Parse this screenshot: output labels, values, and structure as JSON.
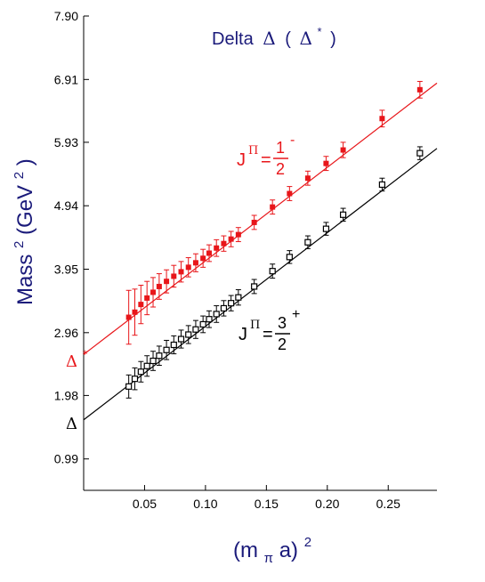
{
  "chart_data": {
    "type": "scatter",
    "title": "Delta",
    "title_symbol": "Δ",
    "title_paren_open": "(",
    "title_paren_symbol": "Δ",
    "title_paren_sup": "*",
    "title_paren_close": ")",
    "xlabel_main": "(m",
    "xlabel_sub": "π",
    "xlabel_end": "a)",
    "xlabel_sup": "2",
    "ylabel_main": "Mass",
    "ylabel_sup1": "2",
    "ylabel_mid": "(GeV",
    "ylabel_sup2": "2",
    "ylabel_end": ")",
    "xlim": [
      0.0,
      0.29
    ],
    "ylim": [
      0.5,
      7.9
    ],
    "xticks": [
      0.05,
      0.1,
      0.15,
      0.2,
      0.25
    ],
    "xtick_labels": [
      "0.05",
      "0.10",
      "0.15",
      "0.20",
      "0.25"
    ],
    "yticks": [
      0.99,
      1.98,
      2.96,
      3.95,
      4.94,
      5.93,
      6.91,
      7.9
    ],
    "ytick_labels": [
      "0.99",
      "1.98",
      "2.96",
      "3.95",
      "4.94",
      "5.93",
      "6.91",
      "7.90"
    ],
    "grid": false,
    "series": [
      {
        "name": "J^Π = 1/2^-",
        "label_J": "J",
        "label_Pi": "Π",
        "label_eq": "=",
        "label_num": "1",
        "label_den": "2",
        "label_sup": "-",
        "color": "#e8161a",
        "marker": "filled-square",
        "intercept_label": "Δ",
        "intercept_label_sup": "*",
        "fit": {
          "intercept": 2.62,
          "slope": 14.6
        },
        "points": [
          [
            0.037,
            3.2,
            0.42
          ],
          [
            0.042,
            3.28,
            0.36
          ],
          [
            0.047,
            3.4,
            0.3
          ],
          [
            0.052,
            3.5,
            0.26
          ],
          [
            0.057,
            3.59,
            0.23
          ],
          [
            0.062,
            3.68,
            0.2
          ],
          [
            0.068,
            3.76,
            0.18
          ],
          [
            0.074,
            3.84,
            0.17
          ],
          [
            0.08,
            3.91,
            0.16
          ],
          [
            0.086,
            3.98,
            0.15
          ],
          [
            0.092,
            4.05,
            0.14
          ],
          [
            0.098,
            4.12,
            0.14
          ],
          [
            0.103,
            4.2,
            0.13
          ],
          [
            0.109,
            4.28,
            0.13
          ],
          [
            0.115,
            4.35,
            0.12
          ],
          [
            0.121,
            4.42,
            0.12
          ],
          [
            0.127,
            4.49,
            0.11
          ],
          [
            0.14,
            4.68,
            0.11
          ],
          [
            0.155,
            4.92,
            0.11
          ],
          [
            0.169,
            5.13,
            0.11
          ],
          [
            0.184,
            5.37,
            0.11
          ],
          [
            0.199,
            5.6,
            0.11
          ],
          [
            0.213,
            5.81,
            0.12
          ],
          [
            0.245,
            6.3,
            0.13
          ],
          [
            0.276,
            6.75,
            0.13
          ]
        ]
      },
      {
        "name": "J^Π = 3/2^+",
        "label_J": "J",
        "label_Pi": "Π",
        "label_eq": "=",
        "label_num": "3",
        "label_den": "2",
        "label_sup": "+",
        "color": "#000000",
        "marker": "open-square",
        "intercept_label": "Δ",
        "intercept_label_sup": "",
        "fit": {
          "intercept": 1.6,
          "slope": 14.6
        },
        "points": [
          [
            0.037,
            2.12,
            0.18
          ],
          [
            0.042,
            2.24,
            0.17
          ],
          [
            0.047,
            2.35,
            0.16
          ],
          [
            0.052,
            2.44,
            0.16
          ],
          [
            0.057,
            2.52,
            0.15
          ],
          [
            0.062,
            2.6,
            0.15
          ],
          [
            0.068,
            2.69,
            0.15
          ],
          [
            0.074,
            2.77,
            0.14
          ],
          [
            0.08,
            2.86,
            0.14
          ],
          [
            0.086,
            2.93,
            0.14
          ],
          [
            0.092,
            3.01,
            0.14
          ],
          [
            0.098,
            3.09,
            0.13
          ],
          [
            0.103,
            3.17,
            0.13
          ],
          [
            0.109,
            3.25,
            0.13
          ],
          [
            0.115,
            3.34,
            0.12
          ],
          [
            0.121,
            3.42,
            0.12
          ],
          [
            0.127,
            3.51,
            0.12
          ],
          [
            0.14,
            3.68,
            0.11
          ],
          [
            0.155,
            3.92,
            0.11
          ],
          [
            0.169,
            4.14,
            0.1
          ],
          [
            0.184,
            4.37,
            0.1
          ],
          [
            0.199,
            4.58,
            0.1
          ],
          [
            0.213,
            4.8,
            0.1
          ],
          [
            0.245,
            5.27,
            0.1
          ],
          [
            0.276,
            5.76,
            0.1
          ]
        ]
      }
    ]
  }
}
